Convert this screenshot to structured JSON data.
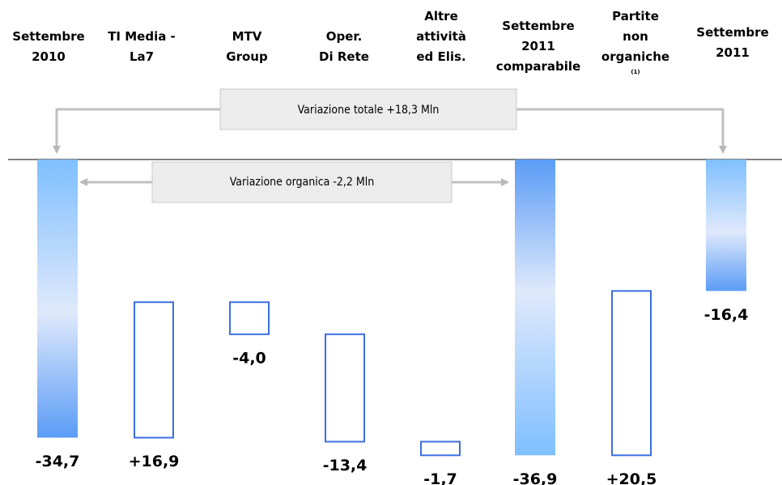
{
  "chart_data": {
    "type": "waterfall",
    "categories": [
      [
        "Settembre",
        "2010"
      ],
      [
        "TI Media -",
        "La7"
      ],
      [
        "MTV",
        "Group"
      ],
      [
        "Oper.",
        "Di Rete"
      ],
      [
        "Altre",
        "attività",
        "ed Elis."
      ],
      [
        "Settembre",
        "2011",
        "comparabile"
      ],
      [
        "Partite",
        "non",
        "organiche"
      ],
      [
        "Settembre",
        "2011"
      ]
    ],
    "footnote": {
      "category": 6,
      "text": "(1)"
    },
    "values": [
      -34.7,
      16.9,
      -4.0,
      -13.4,
      -1.7,
      -36.9,
      20.5,
      -16.4
    ],
    "value_labels": [
      "-34,7",
      "+16,9",
      "-4,0",
      "-13,4",
      "-1,7",
      "-36,9",
      "+20,5",
      "-16,4"
    ],
    "totals": [
      0,
      5,
      7
    ],
    "color": "#3b6fe0",
    "annotations": [
      "Variazione totale +18,3 Mln",
      "Variazione organica -2,2 Mln"
    ]
  }
}
